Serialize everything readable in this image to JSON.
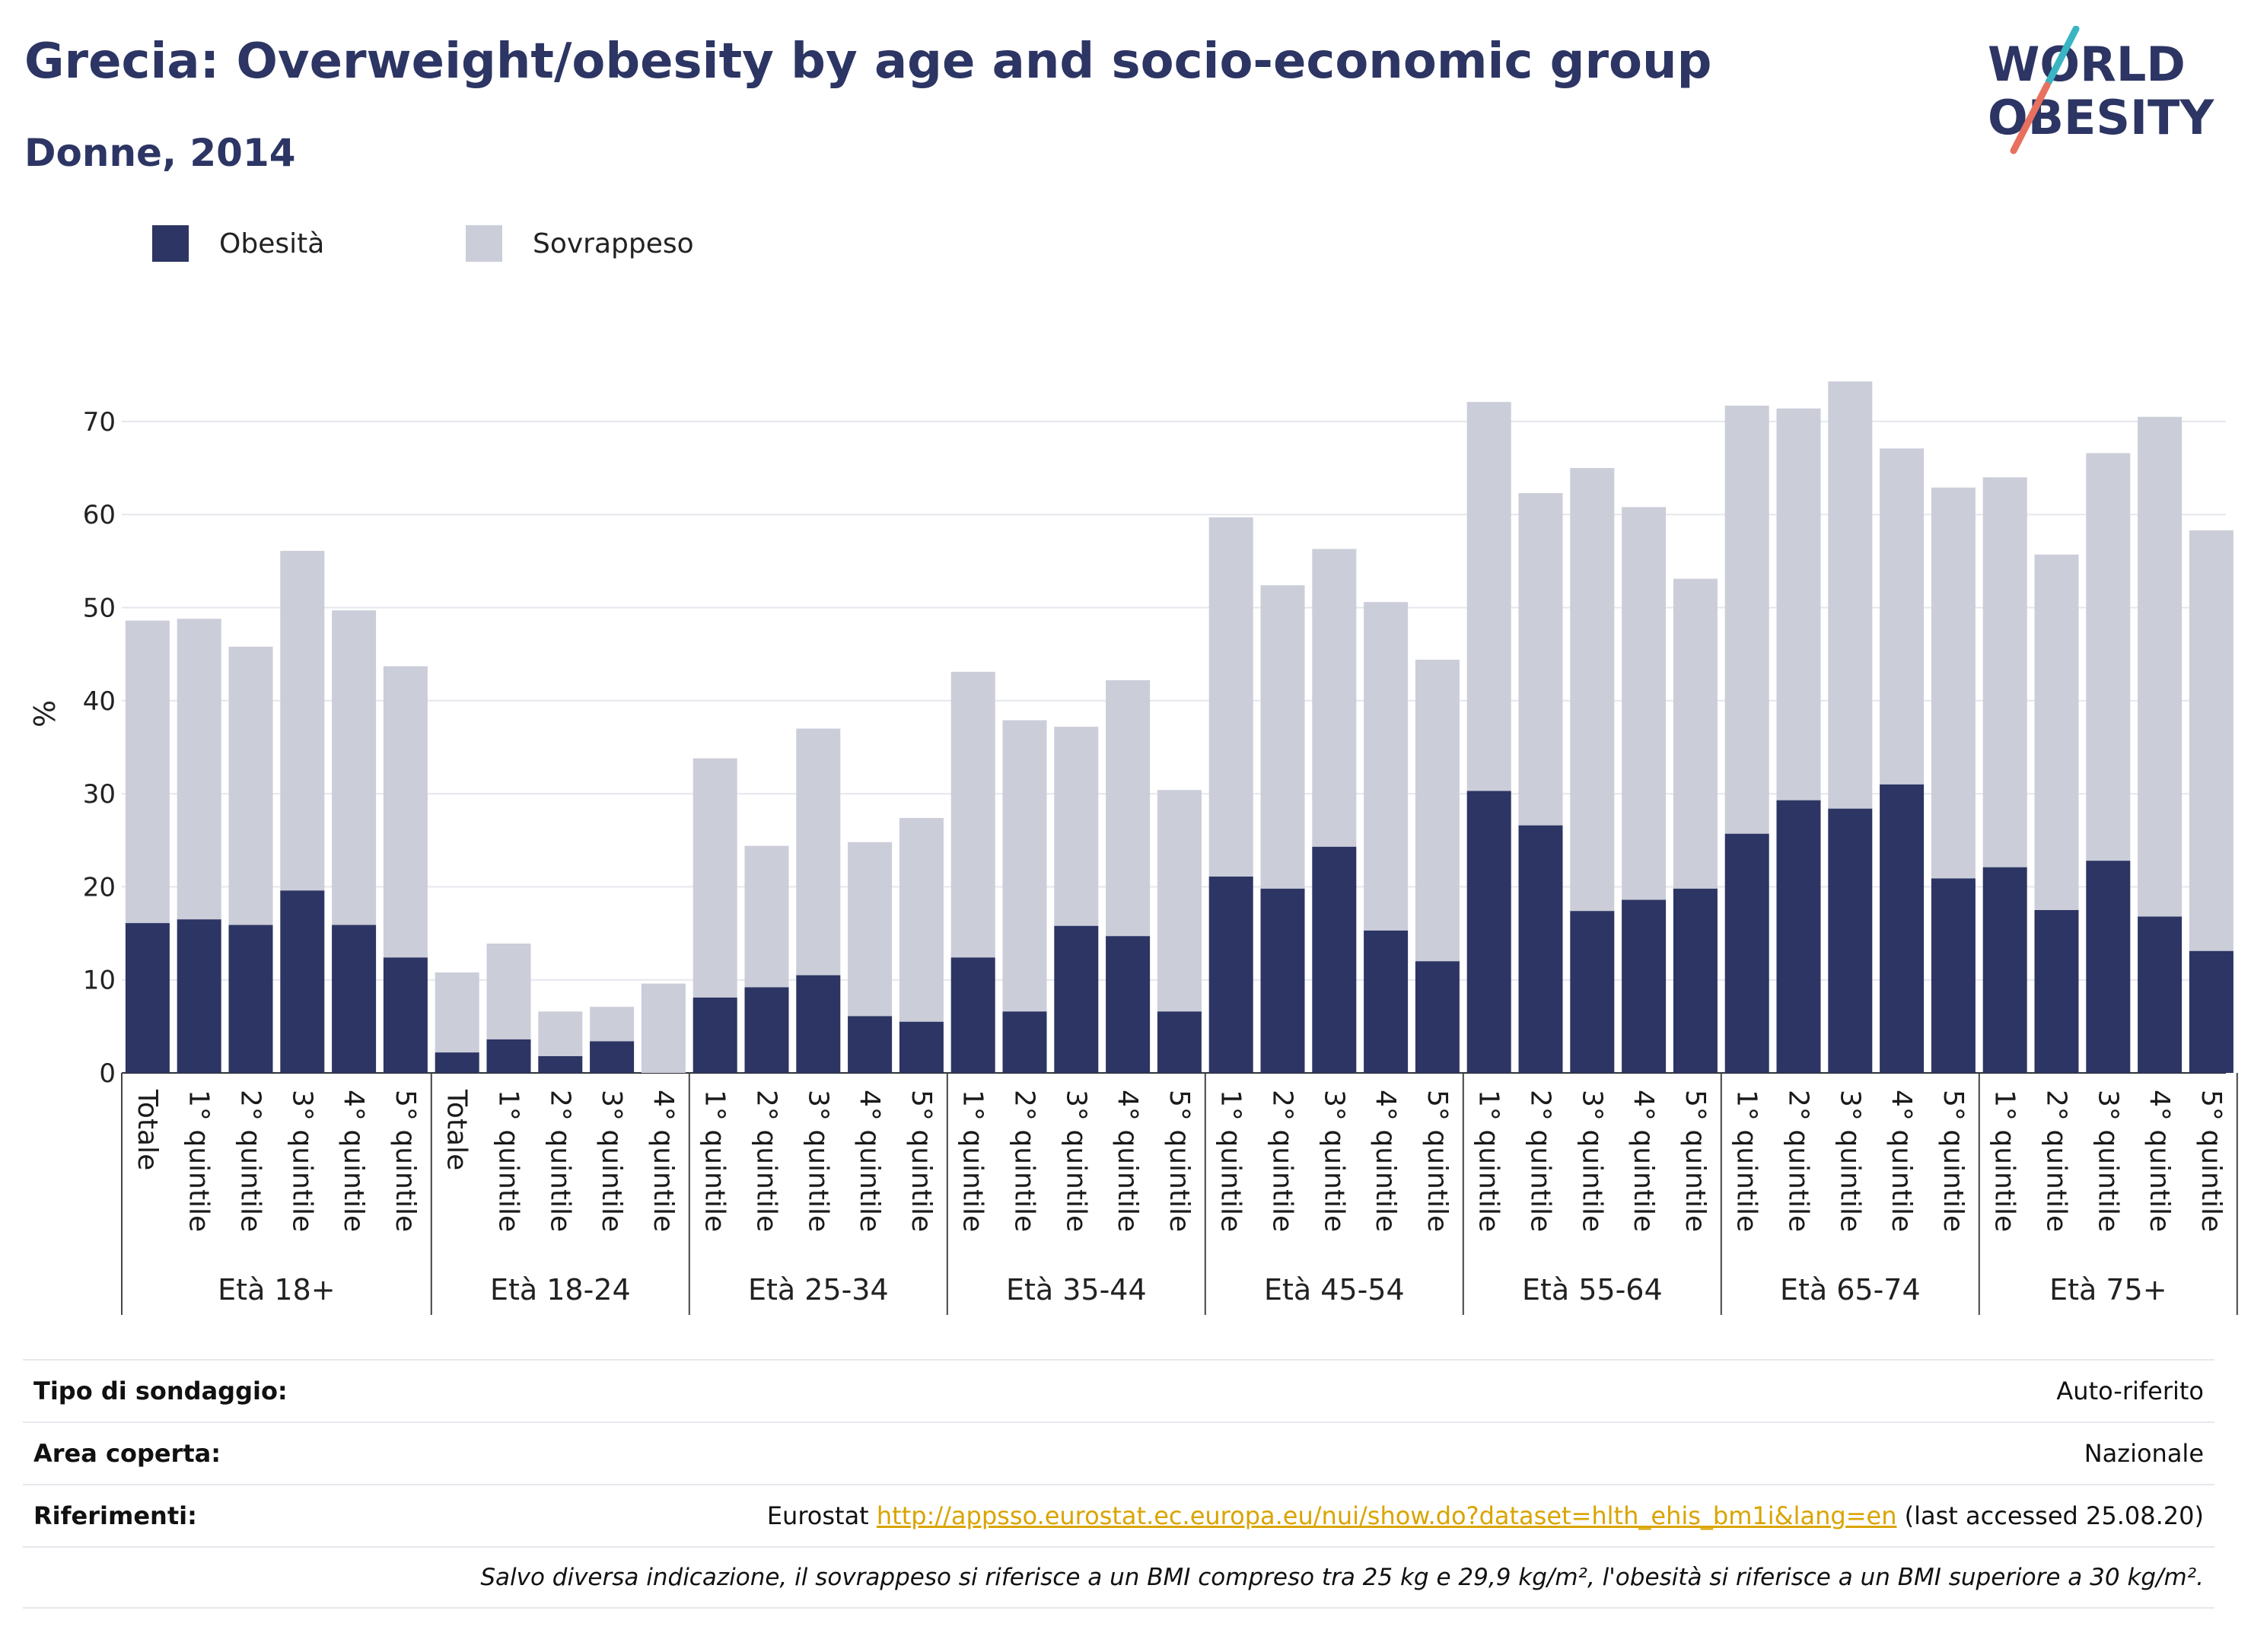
{
  "header": {
    "title": "Grecia: Overweight/obesity by age and socio-economic group",
    "subtitle": "Donne, 2014"
  },
  "logo": {
    "line1": "WORLD",
    "line2": "OBESITY"
  },
  "colors": {
    "obesity": "#2c3563",
    "overweight": "#cbcdd9",
    "title": "#2c3563",
    "link": "#d9a400",
    "logo_teal": "#3ab5c3",
    "logo_coral": "#e8705f"
  },
  "chart_data": {
    "type": "bar",
    "stacked": true,
    "ylabel": "%",
    "xlabel": "",
    "ylim": [
      0,
      75
    ],
    "yticks": [
      0,
      10,
      20,
      30,
      40,
      50,
      60,
      70
    ],
    "grid": true,
    "legend_position": "top-left",
    "series": [
      {
        "name": "Obesità",
        "color": "#2c3563"
      },
      {
        "name": "Sovrappeso",
        "color": "#cbcdd9"
      }
    ],
    "groups": [
      {
        "label": "Età 18+",
        "bars": [
          {
            "label": "Totale",
            "obesity": 16.1,
            "total": 48.6
          },
          {
            "label": "1° quintile",
            "obesity": 16.5,
            "total": 48.8
          },
          {
            "label": "2° quintile",
            "obesity": 15.9,
            "total": 45.8
          },
          {
            "label": "3° quintile",
            "obesity": 19.6,
            "total": 56.1
          },
          {
            "label": "4° quintile",
            "obesity": 15.9,
            "total": 49.7
          },
          {
            "label": "5° quintile",
            "obesity": 12.4,
            "total": 43.7
          }
        ]
      },
      {
        "label": "Età 18-24",
        "bars": [
          {
            "label": "Totale",
            "obesity": 2.2,
            "total": 10.8
          },
          {
            "label": "1° quintile",
            "obesity": 3.6,
            "total": 13.9
          },
          {
            "label": "2° quintile",
            "obesity": 1.8,
            "total": 6.6
          },
          {
            "label": "3° quintile",
            "obesity": 3.4,
            "total": 7.1
          },
          {
            "label": "4° quintile",
            "obesity": 0,
            "total": 9.6
          }
        ]
      },
      {
        "label": "Età 25-34",
        "bars": [
          {
            "label": "1° quintile",
            "obesity": 8.1,
            "total": 33.8
          },
          {
            "label": "2° quintile",
            "obesity": 9.2,
            "total": 24.4
          },
          {
            "label": "3° quintile",
            "obesity": 10.5,
            "total": 37.0
          },
          {
            "label": "4° quintile",
            "obesity": 6.1,
            "total": 24.8
          },
          {
            "label": "5° quintile",
            "obesity": 5.5,
            "total": 27.4
          }
        ]
      },
      {
        "label": "Età 35-44",
        "bars": [
          {
            "label": "1° quintile",
            "obesity": 12.4,
            "total": 43.1
          },
          {
            "label": "2° quintile",
            "obesity": 6.6,
            "total": 37.9
          },
          {
            "label": "3° quintile",
            "obesity": 15.8,
            "total": 37.2
          },
          {
            "label": "4° quintile",
            "obesity": 14.7,
            "total": 42.2
          },
          {
            "label": "5° quintile",
            "obesity": 6.6,
            "total": 30.4
          }
        ]
      },
      {
        "label": "Età 45-54",
        "bars": [
          {
            "label": "1° quintile",
            "obesity": 21.1,
            "total": 59.7
          },
          {
            "label": "2° quintile",
            "obesity": 19.8,
            "total": 52.4
          },
          {
            "label": "3° quintile",
            "obesity": 24.3,
            "total": 56.3
          },
          {
            "label": "4° quintile",
            "obesity": 15.3,
            "total": 50.6
          },
          {
            "label": "5° quintile",
            "obesity": 12.0,
            "total": 44.4
          }
        ]
      },
      {
        "label": "Età 55-64",
        "bars": [
          {
            "label": "1° quintile",
            "obesity": 30.3,
            "total": 72.1
          },
          {
            "label": "2° quintile",
            "obesity": 26.6,
            "total": 62.3
          },
          {
            "label": "3° quintile",
            "obesity": 17.4,
            "total": 65.0
          },
          {
            "label": "4° quintile",
            "obesity": 18.6,
            "total": 60.8
          },
          {
            "label": "5° quintile",
            "obesity": 19.8,
            "total": 53.1
          }
        ]
      },
      {
        "label": "Età 65-74",
        "bars": [
          {
            "label": "1° quintile",
            "obesity": 25.7,
            "total": 71.7
          },
          {
            "label": "2° quintile",
            "obesity": 29.3,
            "total": 71.4
          },
          {
            "label": "3° quintile",
            "obesity": 28.4,
            "total": 74.3
          },
          {
            "label": "4° quintile",
            "obesity": 31.0,
            "total": 67.1
          },
          {
            "label": "5° quintile",
            "obesity": 20.9,
            "total": 62.9
          }
        ]
      },
      {
        "label": "Età 75+",
        "bars": [
          {
            "label": "1° quintile",
            "obesity": 22.1,
            "total": 64.0
          },
          {
            "label": "2° quintile",
            "obesity": 17.5,
            "total": 55.7
          },
          {
            "label": "3° quintile",
            "obesity": 22.8,
            "total": 66.6
          },
          {
            "label": "4° quintile",
            "obesity": 16.8,
            "total": 70.5
          },
          {
            "label": "5° quintile",
            "obesity": 13.1,
            "total": 58.3
          }
        ]
      }
    ]
  },
  "meta": {
    "survey_key": "Tipo di sondaggio:",
    "survey_val": "Auto-riferito",
    "area_key": "Area coperta:",
    "area_val": "Nazionale",
    "ref_key": "Riferimenti:",
    "ref_prefix": "Eurostat ",
    "ref_link": "http://appsso.eurostat.ec.europa.eu/nui/show.do?dataset=hlth_ehis_bm1i&lang=en",
    "ref_suffix": " (last accessed 25.08.20)",
    "note": "Salvo diversa indicazione, il sovrappeso si riferisce a un BMI compreso tra 25 kg e 29,9 kg/m², l'obesità si riferisce a un BMI superiore a 30 kg/m²."
  }
}
